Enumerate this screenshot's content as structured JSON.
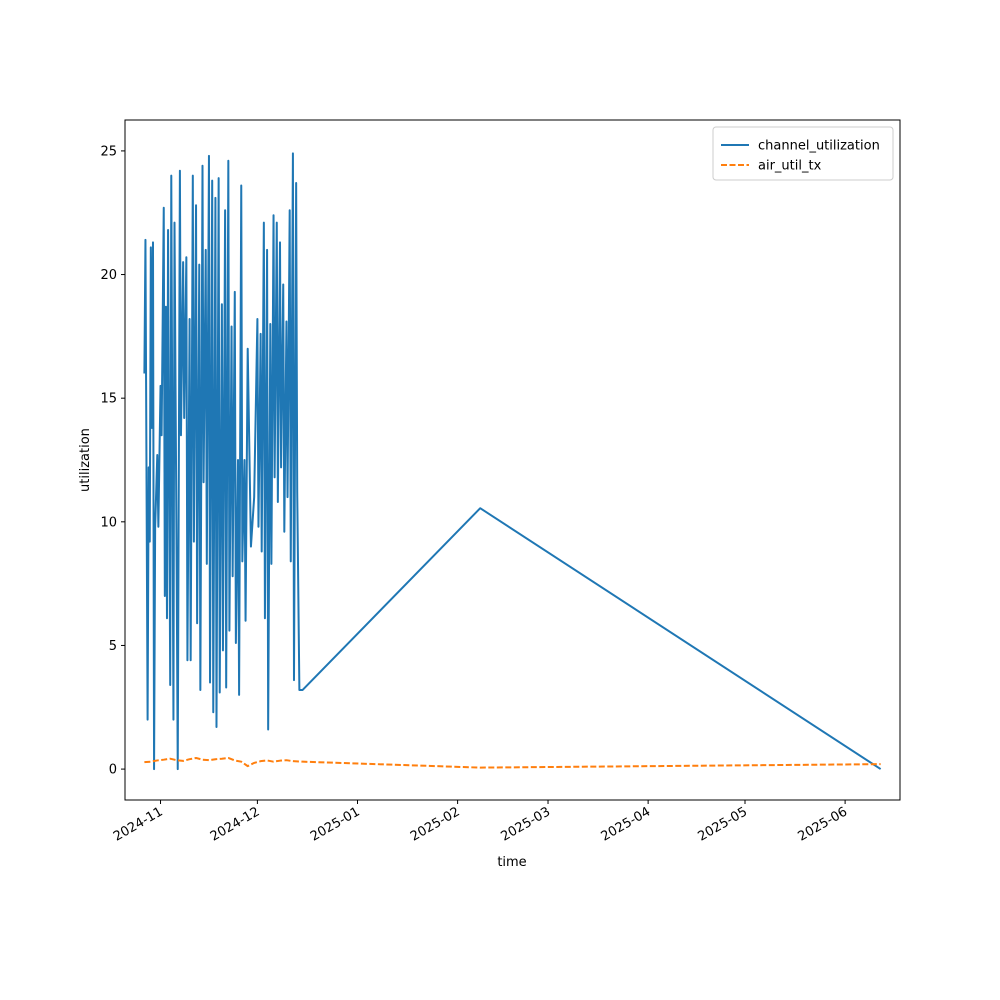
{
  "chart_data": {
    "type": "line",
    "xlabel": "time",
    "ylabel": "utilization",
    "x_scale": "date",
    "xlim": [
      "2024-10-21",
      "2025-06-18"
    ],
    "ylim": [
      -1.25,
      26.25
    ],
    "x_ticks": [
      "2024-11",
      "2024-12",
      "2025-01",
      "2025-02",
      "2025-03",
      "2025-04",
      "2025-05",
      "2025-06"
    ],
    "x_tick_dates": [
      "2024-11-01",
      "2024-12-01",
      "2025-01-01",
      "2025-02-01",
      "2025-03-01",
      "2025-04-01",
      "2025-05-01",
      "2025-06-01"
    ],
    "y_ticks": [
      0,
      5,
      10,
      15,
      20,
      25
    ],
    "y_tick_labels": [
      "0",
      "5",
      "10",
      "15",
      "20",
      "25"
    ],
    "grid": false,
    "legend_position": "top-right",
    "colors": {
      "channel_utilization": "#1f77b4",
      "air_util_tx": "#ff7f0e"
    },
    "series": [
      {
        "name": "channel_utilization",
        "style": "solid",
        "x": [
          "2024-10-27",
          "2024-10-27",
          "2024-10-28",
          "2024-10-28",
          "2024-10-28",
          "2024-10-29",
          "2024-10-29",
          "2024-10-29",
          "2024-10-30",
          "2024-10-30",
          "2024-10-31",
          "2024-10-31",
          "2024-11-01",
          "2024-11-01",
          "2024-11-02",
          "2024-11-02",
          "2024-11-02",
          "2024-11-03",
          "2024-11-03",
          "2024-11-04",
          "2024-11-04",
          "2024-11-05",
          "2024-11-05",
          "2024-11-06",
          "2024-11-06",
          "2024-11-07",
          "2024-11-07",
          "2024-11-08",
          "2024-11-08",
          "2024-11-09",
          "2024-11-09",
          "2024-11-10",
          "2024-11-10",
          "2024-11-11",
          "2024-11-11",
          "2024-11-12",
          "2024-11-12",
          "2024-11-13",
          "2024-11-13",
          "2024-11-14",
          "2024-11-14",
          "2024-11-15",
          "2024-11-15",
          "2024-11-16",
          "2024-11-16",
          "2024-11-17",
          "2024-11-17",
          "2024-11-18",
          "2024-11-18",
          "2024-11-19",
          "2024-11-19",
          "2024-11-20",
          "2024-11-20",
          "2024-11-21",
          "2024-11-21",
          "2024-11-22",
          "2024-11-22",
          "2024-11-23",
          "2024-11-23",
          "2024-11-24",
          "2024-11-24",
          "2024-11-25",
          "2024-11-25",
          "2024-11-26",
          "2024-11-26",
          "2024-11-27",
          "2024-11-27",
          "2024-11-28",
          "2024-11-29",
          "2024-11-30",
          "2024-12-01",
          "2024-12-01",
          "2024-12-02",
          "2024-12-02",
          "2024-12-03",
          "2024-12-03",
          "2024-12-04",
          "2024-12-04",
          "2024-12-05",
          "2024-12-05",
          "2024-12-06",
          "2024-12-06",
          "2024-12-07",
          "2024-12-07",
          "2024-12-08",
          "2024-12-08",
          "2024-12-09",
          "2024-12-09",
          "2024-12-10",
          "2024-12-10",
          "2024-12-11",
          "2024-12-11",
          "2024-12-12",
          "2024-12-12",
          "2024-12-13",
          "2024-12-13",
          "2024-12-14",
          "2024-12-14",
          "2024-12-15",
          "2025-02-08",
          "2025-06-12"
        ],
        "y": [
          16.0,
          21.4,
          2.0,
          12.2,
          9.2,
          21.1,
          13.8,
          21.3,
          0.0,
          9.8,
          12.7,
          9.8,
          15.5,
          13.5,
          22.7,
          7.0,
          18.7,
          6.1,
          21.8,
          3.4,
          24.0,
          2.0,
          22.1,
          8.1,
          0.0,
          24.2,
          13.5,
          20.5,
          14.2,
          20.7,
          4.4,
          18.2,
          4.4,
          24.0,
          9.2,
          22.8,
          5.9,
          20.4,
          3.2,
          24.4,
          11.6,
          21.0,
          8.3,
          24.8,
          3.5,
          23.8,
          2.3,
          23.1,
          1.7,
          23.9,
          3.1,
          18.8,
          4.8,
          22.6,
          3.3,
          24.6,
          5.6,
          17.9,
          7.8,
          19.3,
          5.1,
          12.5,
          3.0,
          23.6,
          8.4,
          12.5,
          6.0,
          17.0,
          9.0,
          11.0,
          18.2,
          9.8,
          17.6,
          8.8,
          22.1,
          6.1,
          21.0,
          1.6,
          18.0,
          8.3,
          22.4,
          11.8,
          22.1,
          10.8,
          21.3,
          12.2,
          19.6,
          9.6,
          18.1,
          11.0,
          22.6,
          8.4,
          24.9,
          3.6,
          23.7,
          11.2,
          3.2,
          3.2,
          3.2,
          10.55,
          0.0
        ]
      },
      {
        "name": "air_util_tx",
        "style": "dashed",
        "x": [
          "2024-10-27",
          "2024-10-29",
          "2024-10-31",
          "2024-11-02",
          "2024-11-04",
          "2024-11-06",
          "2024-11-08",
          "2024-11-10",
          "2024-11-12",
          "2024-11-14",
          "2024-11-16",
          "2024-11-18",
          "2024-11-20",
          "2024-11-22",
          "2024-11-24",
          "2024-11-26",
          "2024-11-28",
          "2024-11-30",
          "2024-12-02",
          "2024-12-04",
          "2024-12-06",
          "2024-12-08",
          "2024-12-10",
          "2024-12-12",
          "2024-12-15",
          "2025-02-08",
          "2025-06-12"
        ],
        "y": [
          0.28,
          0.3,
          0.35,
          0.38,
          0.42,
          0.36,
          0.33,
          0.4,
          0.45,
          0.38,
          0.36,
          0.4,
          0.42,
          0.45,
          0.35,
          0.3,
          0.12,
          0.25,
          0.32,
          0.35,
          0.3,
          0.34,
          0.36,
          0.32,
          0.3,
          0.06,
          0.2
        ]
      }
    ]
  }
}
